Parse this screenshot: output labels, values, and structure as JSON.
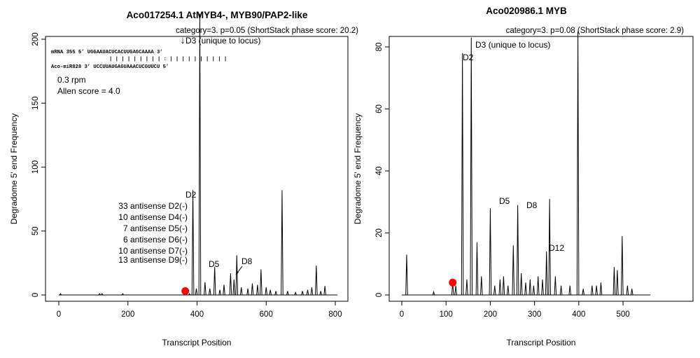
{
  "chart_data": [
    {
      "type": "line",
      "title": "Aco017254.1 AtMYB4-, MYB90/PAP2-like",
      "subtitle": "category=3. p=0.05 (ShortStack phase score: 20.2)",
      "xlabel": "Transcript Position",
      "ylabel": "Degradome 5' end Frequency",
      "xlim": [
        0,
        800
      ],
      "ylim": [
        0,
        220
      ],
      "xticks": [
        "0",
        "200",
        "400",
        "600",
        "800"
      ],
      "yticks": [
        "0",
        "50",
        "100",
        "150",
        "200"
      ],
      "grid": false,
      "peaks": [
        {
          "x": 5,
          "y": 1
        },
        {
          "x": 118,
          "y": 1
        },
        {
          "x": 125,
          "y": 1
        },
        {
          "x": 185,
          "y": 1
        },
        {
          "x": 365,
          "y": 2
        },
        {
          "x": 378,
          "y": 1
        },
        {
          "x": 388,
          "y": 82
        },
        {
          "x": 398,
          "y": 5
        },
        {
          "x": 408,
          "y": 220
        },
        {
          "x": 423,
          "y": 10
        },
        {
          "x": 437,
          "y": 5
        },
        {
          "x": 451,
          "y": 22
        },
        {
          "x": 466,
          "y": 4
        },
        {
          "x": 478,
          "y": 8
        },
        {
          "x": 497,
          "y": 17
        },
        {
          "x": 507,
          "y": 12
        },
        {
          "x": 515,
          "y": 31
        },
        {
          "x": 528,
          "y": 6
        },
        {
          "x": 547,
          "y": 5
        },
        {
          "x": 560,
          "y": 9
        },
        {
          "x": 575,
          "y": 8
        },
        {
          "x": 585,
          "y": 20
        },
        {
          "x": 600,
          "y": 6
        },
        {
          "x": 612,
          "y": 4
        },
        {
          "x": 628,
          "y": 3
        },
        {
          "x": 646,
          "y": 82
        },
        {
          "x": 662,
          "y": 3
        },
        {
          "x": 685,
          "y": 2
        },
        {
          "x": 705,
          "y": 3
        },
        {
          "x": 720,
          "y": 4
        },
        {
          "x": 732,
          "y": 6
        },
        {
          "x": 745,
          "y": 23
        },
        {
          "x": 758,
          "y": 3
        },
        {
          "x": 770,
          "y": 7
        }
      ],
      "marker": {
        "x": 366,
        "y": 3,
        "color": "#ff0000"
      },
      "line_color": "#000000",
      "annotations": {
        "d2": "D2",
        "d3": "D3 (unique to locus)",
        "d5": "D5",
        "d8": "D8",
        "antisense": [
          "33 antisense D2(-)",
          "10 antisense D4(-)",
          "7 antisense D5(-)",
          "6 antisense D6(-)",
          "10 antisense D7(-)",
          "13 antisense D9(-)"
        ],
        "alignment": {
          "mrna": "mRNA  355  5’ UGGAAUACUCACUUGAGCAAAA 3’",
          "pairs": "| | | | | | | | | : | | | | | | | | | |",
          "mirna": "Aco-miR828 3’ UCCUUAUGAGUAAACUCGUUCU 5’",
          "arrow": "↓"
        },
        "rpm": "0.3 rpm",
        "allen": "Allen score = 4.0"
      }
    },
    {
      "type": "line",
      "title": "Aco020986.1 MYB",
      "subtitle": "category=3. p=0.08 (ShortStack phase score: 2.9)",
      "xlabel": "Transcript Position",
      "ylabel": "Degradome 5' end Frequency",
      "xlim": [
        0,
        560
      ],
      "ylim": [
        0,
        85
      ],
      "xticks": [
        "0",
        "100",
        "200",
        "300",
        "400",
        "500"
      ],
      "yticks": [
        "0",
        "20",
        "40",
        "60",
        "80"
      ],
      "grid": false,
      "peaks": [
        {
          "x": 11,
          "y": 13
        },
        {
          "x": 72,
          "y": 1
        },
        {
          "x": 115,
          "y": 4
        },
        {
          "x": 122,
          "y": 3
        },
        {
          "x": 137,
          "y": 78
        },
        {
          "x": 147,
          "y": 5
        },
        {
          "x": 157,
          "y": 83
        },
        {
          "x": 170,
          "y": 17
        },
        {
          "x": 180,
          "y": 6
        },
        {
          "x": 200,
          "y": 28
        },
        {
          "x": 210,
          "y": 3
        },
        {
          "x": 222,
          "y": 5
        },
        {
          "x": 230,
          "y": 6
        },
        {
          "x": 240,
          "y": 3
        },
        {
          "x": 252,
          "y": 16
        },
        {
          "x": 262,
          "y": 29
        },
        {
          "x": 270,
          "y": 7
        },
        {
          "x": 280,
          "y": 4
        },
        {
          "x": 290,
          "y": 5
        },
        {
          "x": 298,
          "y": 3
        },
        {
          "x": 308,
          "y": 6
        },
        {
          "x": 318,
          "y": 5
        },
        {
          "x": 327,
          "y": 14
        },
        {
          "x": 334,
          "y": 31
        },
        {
          "x": 347,
          "y": 6
        },
        {
          "x": 360,
          "y": 3
        },
        {
          "x": 380,
          "y": 3
        },
        {
          "x": 398,
          "y": 85
        },
        {
          "x": 410,
          "y": 2
        },
        {
          "x": 430,
          "y": 3
        },
        {
          "x": 440,
          "y": 3
        },
        {
          "x": 450,
          "y": 4
        },
        {
          "x": 480,
          "y": 9
        },
        {
          "x": 487,
          "y": 8
        },
        {
          "x": 498,
          "y": 19
        },
        {
          "x": 510,
          "y": 3
        },
        {
          "x": 520,
          "y": 2
        }
      ],
      "marker": {
        "x": 115,
        "y": 4,
        "color": "#ff0000"
      },
      "line_color": "#000000",
      "annotations": {
        "d2": "D2",
        "d3": "D3 (unique to locus)",
        "d5": "D5",
        "d8": "D8",
        "d12": "D12"
      }
    }
  ]
}
